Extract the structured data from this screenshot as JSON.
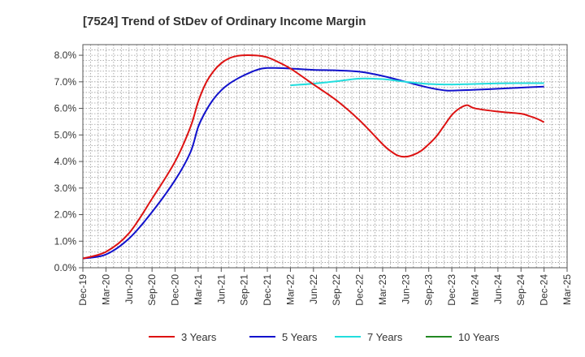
{
  "chart_data": {
    "type": "line",
    "title": "[7524]  Trend of StDev of Ordinary Income Margin",
    "xlabel": "",
    "ylabel": "",
    "x_ticks": [
      "Dec-19",
      "Mar-20",
      "Jun-20",
      "Sep-20",
      "Dec-20",
      "Mar-21",
      "Jun-21",
      "Sep-21",
      "Dec-21",
      "Mar-22",
      "Jun-22",
      "Sep-22",
      "Dec-22",
      "Mar-23",
      "Jun-23",
      "Sep-23",
      "Dec-23",
      "Mar-24",
      "Jun-24",
      "Sep-24",
      "Dec-24",
      "Mar-25"
    ],
    "y_ticks": [
      "0.0%",
      "1.0%",
      "2.0%",
      "3.0%",
      "4.0%",
      "5.0%",
      "6.0%",
      "7.0%",
      "8.0%"
    ],
    "ylim": [
      0,
      8.4
    ],
    "grid": true,
    "legend_position": "bottom",
    "series": [
      {
        "name": "3 Years",
        "color": "#dd1111",
        "x": [
          "Dec-19",
          "Mar-20",
          "Jun-20",
          "Sep-20",
          "Dec-20",
          "Feb-21",
          "Mar-21",
          "Apr-21",
          "May-21",
          "Jun-21",
          "Jul-21",
          "Aug-21",
          "Sep-21",
          "Oct-21",
          "Nov-21",
          "Dec-21",
          "Jan-22",
          "Mar-22",
          "Jun-22",
          "Sep-22",
          "Dec-22",
          "Mar-23",
          "Apr-23",
          "May-23",
          "Jun-23",
          "Jul-23",
          "Aug-23",
          "Sep-23",
          "Oct-23",
          "Nov-23",
          "Dec-23",
          "Jan-24",
          "Feb-24",
          "Mar-24",
          "Jun-24",
          "Sep-24",
          "Oct-24",
          "Nov-24",
          "Dec-24"
        ],
        "y": [
          0.35,
          0.6,
          1.3,
          2.6,
          4.0,
          5.3,
          6.25,
          6.95,
          7.4,
          7.7,
          7.88,
          7.97,
          8.0,
          8.0,
          7.98,
          7.92,
          7.8,
          7.5,
          6.9,
          6.3,
          5.55,
          4.65,
          4.4,
          4.22,
          4.18,
          4.25,
          4.4,
          4.65,
          4.95,
          5.35,
          5.75,
          6.0,
          6.12,
          6.0,
          5.88,
          5.8,
          5.72,
          5.62,
          5.48
        ]
      },
      {
        "name": "5 Years",
        "color": "#1111cc",
        "x": [
          "Dec-19",
          "Mar-20",
          "Jun-20",
          "Sep-20",
          "Dec-20",
          "Feb-21",
          "Mar-21",
          "Apr-21",
          "May-21",
          "Jun-21",
          "Jul-21",
          "Aug-21",
          "Sep-21",
          "Oct-21",
          "Nov-21",
          "Dec-21",
          "Jan-22",
          "Mar-22",
          "Jun-22",
          "Sep-22",
          "Dec-22",
          "Mar-23",
          "Jun-23",
          "Sep-23",
          "Nov-23",
          "Dec-23",
          "Mar-24",
          "Jun-24",
          "Sep-24",
          "Dec-24"
        ],
        "y": [
          0.35,
          0.5,
          1.1,
          2.1,
          3.3,
          4.35,
          5.3,
          5.9,
          6.35,
          6.68,
          6.92,
          7.1,
          7.25,
          7.38,
          7.48,
          7.52,
          7.52,
          7.5,
          7.45,
          7.43,
          7.38,
          7.22,
          7.0,
          6.78,
          6.68,
          6.67,
          6.7,
          6.74,
          6.78,
          6.82
        ]
      },
      {
        "name": "7 Years",
        "color": "#22dddd",
        "x": [
          "Mar-22",
          "Jun-22",
          "Sep-22",
          "Dec-22",
          "Mar-23",
          "Jun-23",
          "Sep-23",
          "Dec-23",
          "Mar-24",
          "Jun-24",
          "Sep-24",
          "Dec-24"
        ],
        "y": [
          6.87,
          6.93,
          7.02,
          7.12,
          7.1,
          7.0,
          6.92,
          6.9,
          6.92,
          6.94,
          6.95,
          6.95
        ]
      },
      {
        "name": "10 Years",
        "color": "#228822",
        "x": [],
        "y": []
      }
    ]
  }
}
